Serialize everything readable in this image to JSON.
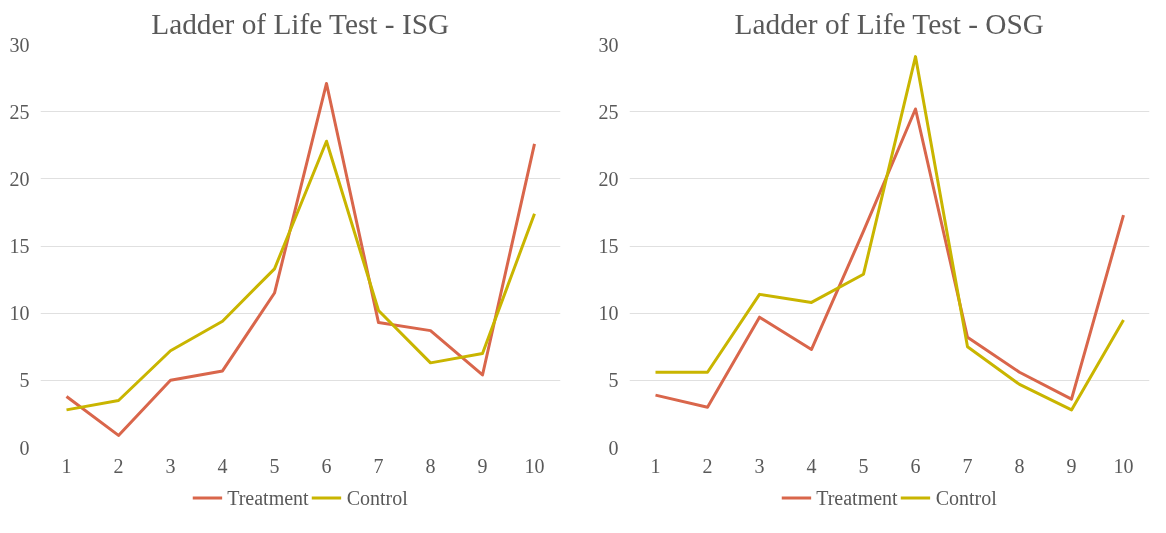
{
  "chart_data": [
    {
      "type": "line",
      "title": "Ladder of Life Test - ISG",
      "categories": [
        "1",
        "2",
        "3",
        "4",
        "5",
        "6",
        "7",
        "8",
        "9",
        "10"
      ],
      "ylim": [
        0,
        30
      ],
      "yticks": [
        0,
        5,
        10,
        15,
        20,
        25,
        30
      ],
      "grid": "y",
      "legend": "bottom",
      "marker": "none",
      "series": [
        {
          "name": "Treatment",
          "color": "#d9664b",
          "values": [
            3.8,
            0.9,
            5.0,
            5.7,
            11.5,
            27.1,
            9.3,
            8.7,
            5.4,
            22.6
          ]
        },
        {
          "name": "Control",
          "color": "#c9b500",
          "values": [
            2.8,
            3.5,
            7.2,
            9.4,
            13.3,
            22.8,
            10.2,
            6.3,
            7.0,
            17.4
          ]
        }
      ]
    },
    {
      "type": "line",
      "title": "Ladder of Life Test - OSG",
      "categories": [
        "1",
        "2",
        "3",
        "4",
        "5",
        "6",
        "7",
        "8",
        "9",
        "10"
      ],
      "ylim": [
        0,
        30
      ],
      "yticks": [
        0,
        5,
        10,
        15,
        20,
        25,
        30
      ],
      "grid": "y",
      "legend": "bottom",
      "marker": "none",
      "series": [
        {
          "name": "Treatment",
          "color": "#d9664b",
          "values": [
            3.9,
            3.0,
            9.7,
            7.3,
            16.1,
            25.2,
            8.2,
            5.6,
            3.6,
            17.3
          ]
        },
        {
          "name": "Control",
          "color": "#c9b500",
          "values": [
            5.6,
            5.6,
            11.4,
            10.8,
            12.9,
            29.1,
            7.5,
            4.7,
            2.8,
            9.5
          ]
        }
      ]
    }
  ]
}
